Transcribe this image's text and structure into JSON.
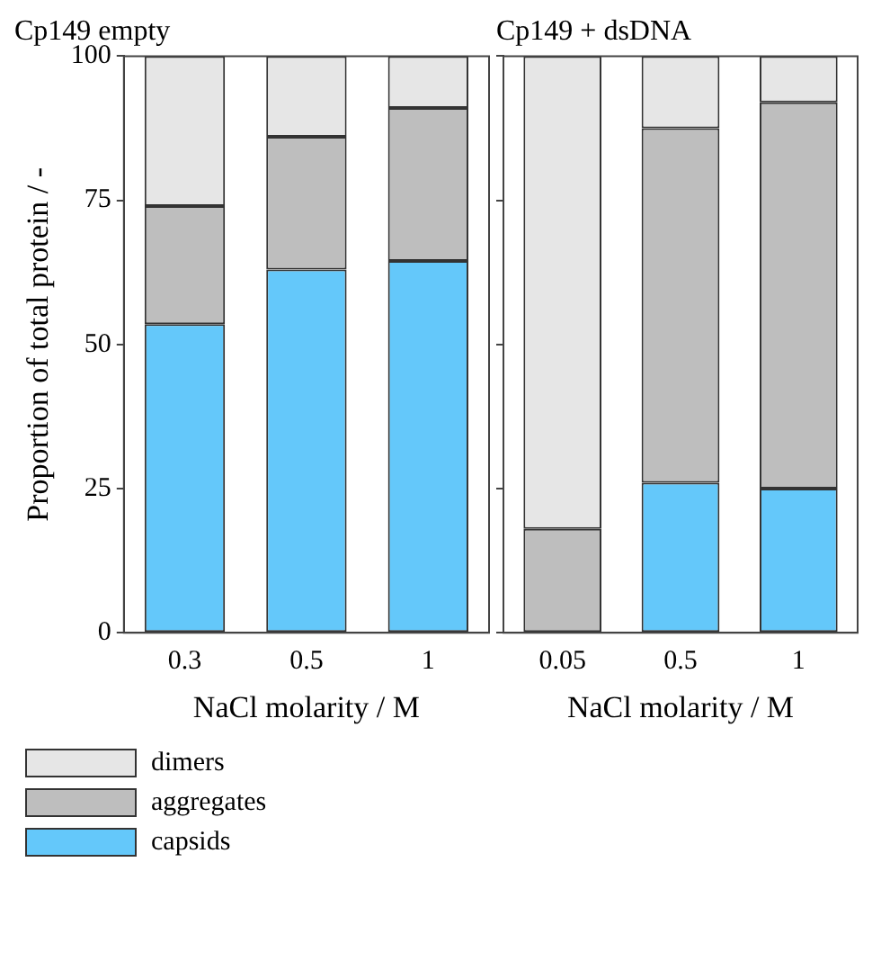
{
  "chart_data": [
    {
      "type": "bar",
      "title": "Cp149 empty",
      "xlabel": "NaCl molarity / M",
      "ylabel": "Proportion of total protein / -",
      "categories": [
        "0.3",
        "0.5",
        "1"
      ],
      "stacked": true,
      "ylim": [
        0,
        100
      ],
      "yticks": [
        0,
        25,
        50,
        75,
        100
      ],
      "legend": "bottom left",
      "series": [
        {
          "name": "capsids",
          "color": "#64c8fa",
          "values": [
            53.5,
            63,
            64.5
          ]
        },
        {
          "name": "aggregates",
          "color": "#bebebe",
          "values": [
            20.5,
            23,
            26.5
          ]
        },
        {
          "name": "dimers",
          "color": "#e6e6e6",
          "values": [
            26,
            14,
            9
          ]
        }
      ]
    },
    {
      "type": "bar",
      "title": "Cp149 + dsDNA",
      "xlabel": "NaCl molarity / M",
      "categories": [
        "0.05",
        "0.5",
        "1"
      ],
      "stacked": true,
      "ylim": [
        0,
        100
      ],
      "yticks": [
        0,
        25,
        50,
        75,
        100
      ],
      "tick_labels": "x",
      "series": [
        {
          "color": "#64c8fa",
          "values": [
            0,
            26,
            25
          ]
        },
        {
          "color": "#bebebe",
          "values": [
            18,
            61.5,
            67
          ]
        },
        {
          "color": "#e6e6e6",
          "values": [
            82,
            12.5,
            8
          ]
        }
      ]
    }
  ]
}
